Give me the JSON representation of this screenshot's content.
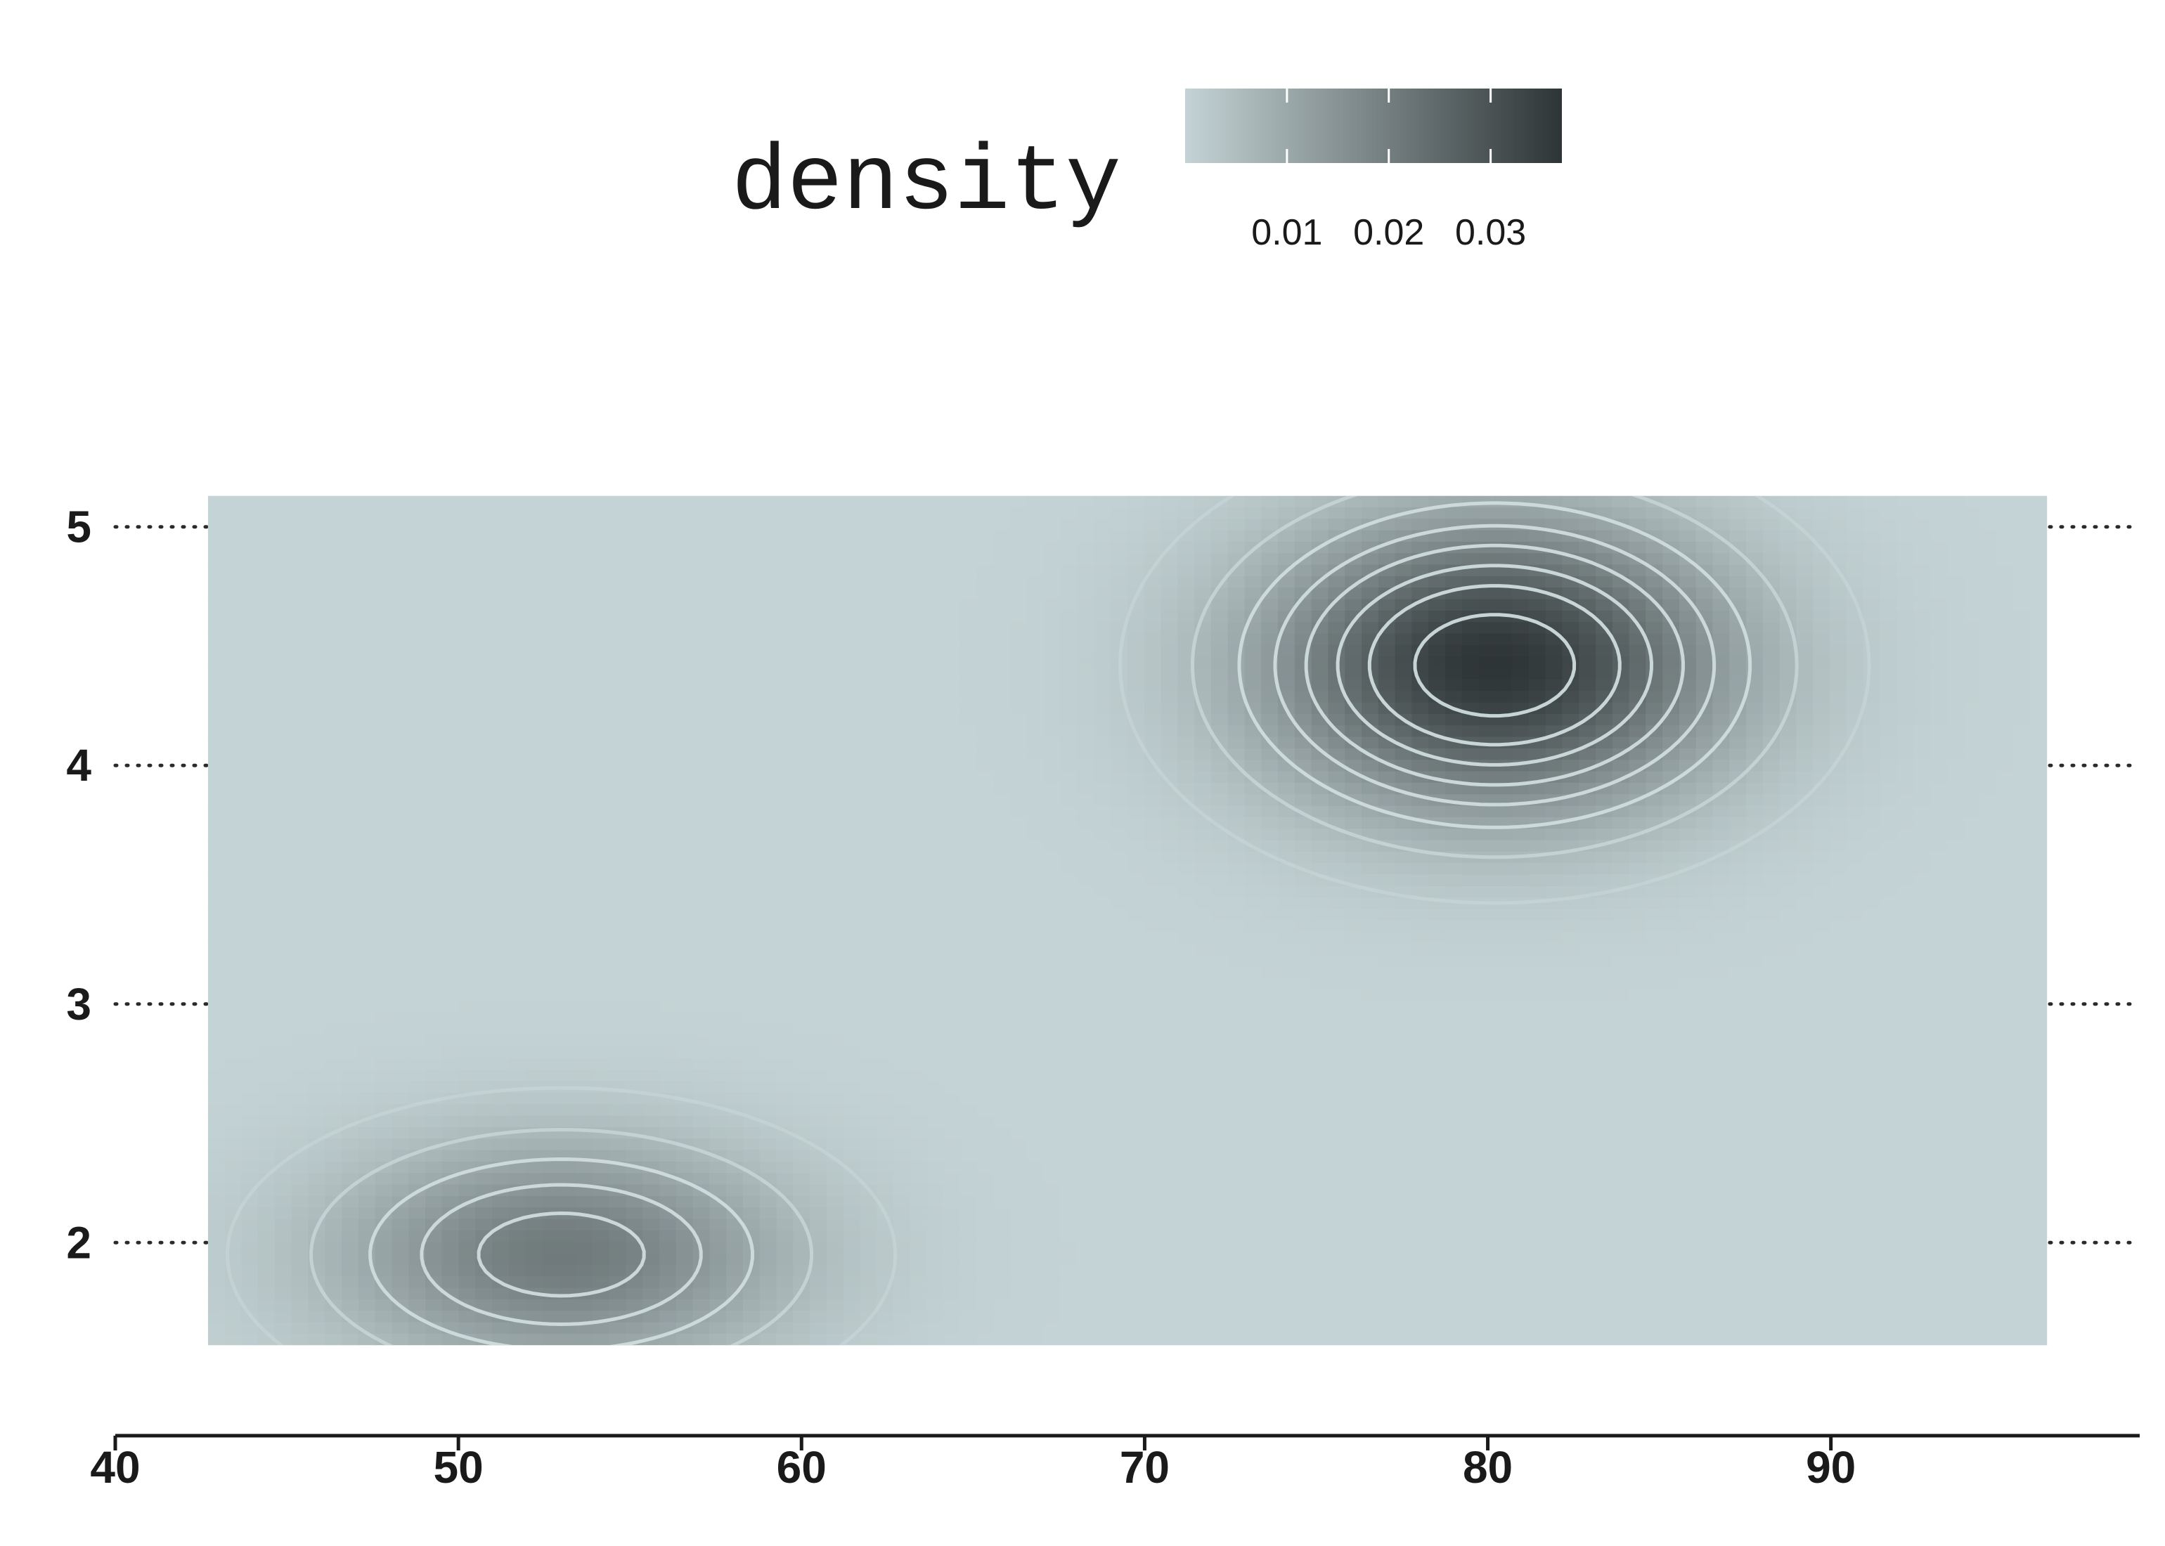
{
  "chart_data": {
    "type": "heatmap",
    "title": "",
    "xlabel": "",
    "ylabel": "",
    "xlim": [
      40,
      99
    ],
    "ylim": [
      1.4,
      5.6
    ],
    "x_ticks": [
      "40",
      "50",
      "60",
      "70",
      "80",
      "90"
    ],
    "y_ticks": [
      "2",
      "3",
      "4",
      "5"
    ],
    "raster_extent": {
      "x": [
        42.7,
        96.3
      ],
      "y": [
        1.57,
        5.13
      ]
    },
    "grid": "dotted horizontal lines at y ticks",
    "legend": {
      "title": "density",
      "placement": "top",
      "ticks": [
        "0.01",
        "0.02",
        "0.03"
      ],
      "tick_values": [
        0.01,
        0.02,
        0.03
      ],
      "range": [
        0.0,
        0.037
      ],
      "color_low": "#c4d3d5",
      "color_high": "#2e3536"
    },
    "density_peaks": [
      {
        "x": 80.2,
        "y": 4.42,
        "sx": 4.6,
        "sy": 0.42,
        "weight": 0.64
      },
      {
        "x": 53.0,
        "y": 1.95,
        "sx": 4.6,
        "sy": 0.33,
        "weight": 0.36
      }
    ],
    "contour_color": "#cfdcdd"
  }
}
